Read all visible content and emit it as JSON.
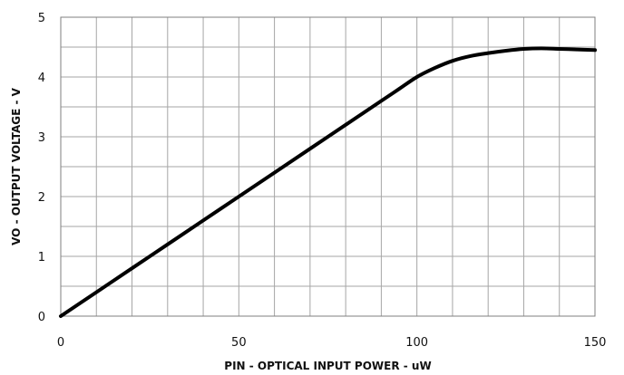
{
  "chart_data": {
    "type": "line",
    "title": "",
    "xlabel": "PIN - OPTICAL INPUT POWER - uW",
    "ylabel": "VO - OUTPUT VOLTAGE - V",
    "xlim": [
      0,
      150
    ],
    "ylim": [
      0,
      5
    ],
    "x_ticks": [
      0,
      50,
      100,
      150
    ],
    "x_tick_labels": [
      "0",
      "50",
      "100",
      "150"
    ],
    "y_ticks": [
      0,
      1,
      2,
      3,
      4,
      5
    ],
    "y_tick_labels": [
      "0",
      "1",
      "2",
      "3",
      "4",
      "5"
    ],
    "x_minor_step": 10,
    "y_minor_step": 0.5,
    "grid": true,
    "legend": "none",
    "line_color": "#000000",
    "grid_color": "#a6a6a6",
    "series": [
      {
        "x": [
          0,
          10,
          20,
          30,
          40,
          50,
          60,
          70,
          80,
          90,
          95,
          100,
          105,
          110,
          115,
          120,
          125,
          130,
          135,
          140,
          145,
          150
        ],
        "y": [
          0,
          0.4,
          0.8,
          1.2,
          1.6,
          2.0,
          2.4,
          2.8,
          3.2,
          3.6,
          3.8,
          4.0,
          4.15,
          4.27,
          4.35,
          4.4,
          4.44,
          4.47,
          4.48,
          4.47,
          4.46,
          4.45
        ]
      }
    ]
  }
}
